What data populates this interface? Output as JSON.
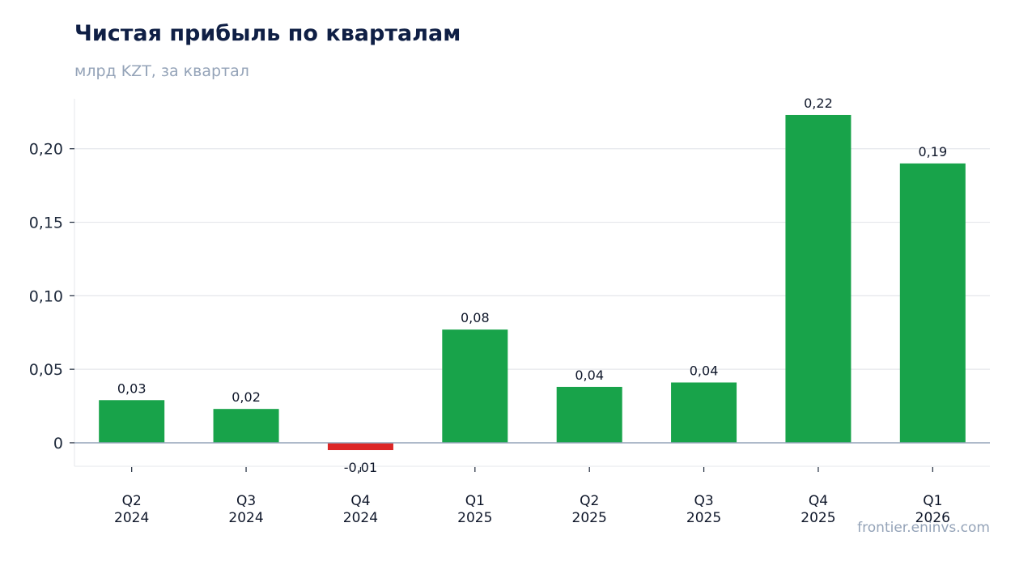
{
  "header": {
    "title": "Чистая прибыль по кварталам",
    "subtitle": "млрд KZT, за квартал"
  },
  "watermark": "frontier.eninvs.com",
  "colors": {
    "positive": "#18a34a",
    "negative": "#dc2626",
    "grid": "#e5e7eb",
    "zero_line": "#94a3b8"
  },
  "chart_data": {
    "type": "bar",
    "title": "Чистая прибыль по кварталам",
    "subtitle": "млрд KZT, за квартал",
    "categories": [
      [
        "Q2",
        "2024"
      ],
      [
        "Q3",
        "2024"
      ],
      [
        "Q4",
        "2024"
      ],
      [
        "Q1",
        "2025"
      ],
      [
        "Q2",
        "2025"
      ],
      [
        "Q3",
        "2025"
      ],
      [
        "Q4",
        "2025"
      ],
      [
        "Q1",
        "2026"
      ]
    ],
    "values": [
      0.029,
      0.023,
      -0.005,
      0.077,
      0.038,
      0.041,
      0.223,
      0.19
    ],
    "data_labels": [
      "0,03",
      "0,02",
      "-0,01",
      "0,08",
      "0,04",
      "0,04",
      "0,22",
      "0,19"
    ],
    "ylim": [
      -0.016,
      0.234
    ],
    "yticks": [
      0,
      0.05,
      0.1,
      0.15,
      0.2
    ],
    "ytick_labels": [
      "0",
      "0,05",
      "0,10",
      "0,15",
      "0,20"
    ],
    "grid": true,
    "legend": "none"
  }
}
